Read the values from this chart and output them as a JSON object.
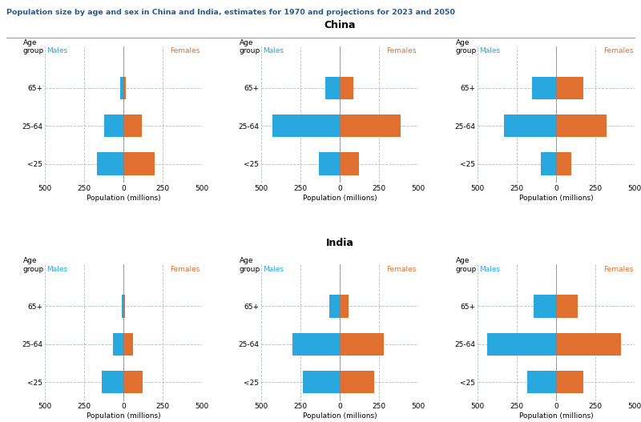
{
  "title": "Population size by age and sex in China and India, estimates for 1970 and projections for 2023 and 2050",
  "title_color": "#1f5c99",
  "blue": "#29a8e0",
  "orange": "#e07030",
  "bg_color": "#ffffff",
  "grid_color": "#b0bec5",
  "countries": [
    "China",
    "India"
  ],
  "years": [
    "1970",
    "2023",
    "2050"
  ],
  "age_groups": [
    "65+",
    "25-64",
    "<25"
  ],
  "data": {
    "China": {
      "1970": {
        "males": [
          20,
          120,
          170
        ],
        "females": [
          18,
          120,
          200
        ]
      },
      "2023": {
        "males": [
          90,
          430,
          135
        ],
        "females": [
          85,
          390,
          125
        ]
      },
      "2050": {
        "males": [
          155,
          335,
          100
        ],
        "females": [
          175,
          320,
          95
        ]
      }
    },
    "India": {
      "1970": {
        "males": [
          12,
          65,
          135
        ],
        "females": [
          10,
          60,
          125
        ]
      },
      "2023": {
        "males": [
          65,
          300,
          235
        ],
        "females": [
          55,
          280,
          220
        ]
      },
      "2050": {
        "males": [
          145,
          440,
          185
        ],
        "females": [
          135,
          415,
          175
        ]
      }
    }
  },
  "xlim": 500,
  "bar_height": 0.6
}
